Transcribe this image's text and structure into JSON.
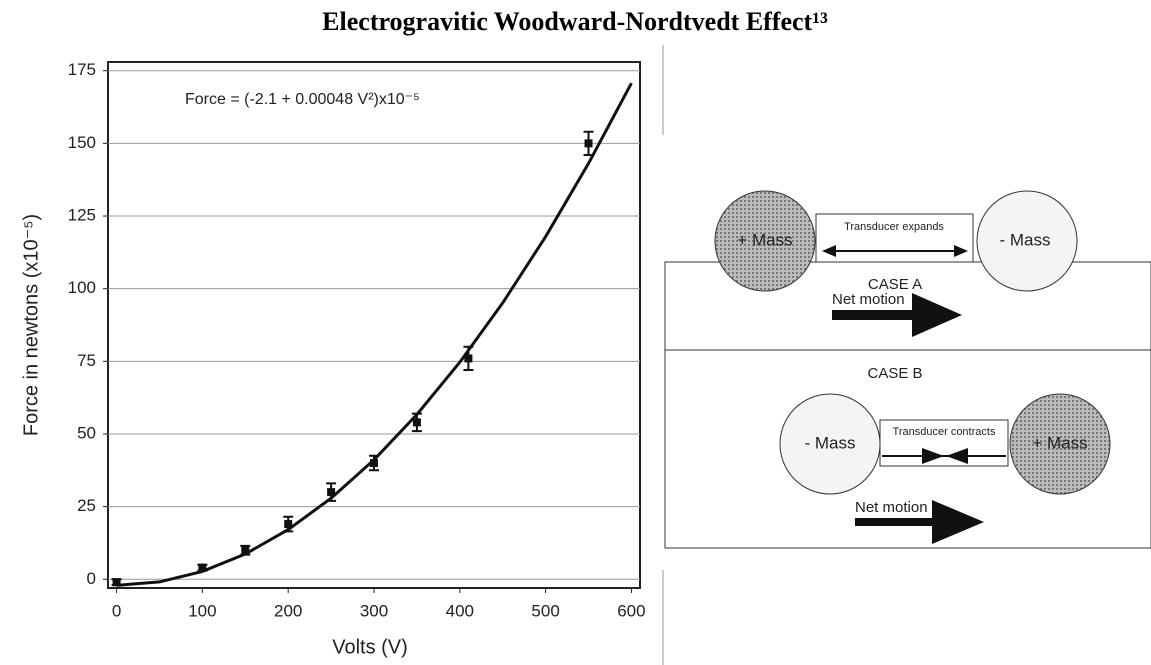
{
  "chart_data": {
    "type": "scatter",
    "title": "Electrogravitic Woodward-Nordtvedt Effect¹³",
    "xlabel": "Volts (V)",
    "ylabel": "Force in newtons (x10⁻⁵)",
    "annotation": "Force = (-2.1 + 0.00048 V²)x10⁻⁵",
    "xlim": [
      -10,
      610
    ],
    "xticks": [
      0,
      100,
      200,
      300,
      400,
      500,
      600
    ],
    "ylim": [
      -3,
      178
    ],
    "yticks": [
      0,
      25,
      50,
      75,
      100,
      125,
      150,
      175
    ],
    "grid": true,
    "series": [
      {
        "type": "line",
        "color": "#111",
        "x": [
          0,
          50,
          100,
          150,
          200,
          250,
          300,
          350,
          400,
          450,
          500,
          550,
          600
        ],
        "values": [
          -2.1,
          -0.9,
          2.7,
          8.7,
          17.1,
          27.9,
          41.1,
          56.7,
          74.7,
          95.1,
          117.9,
          143.1,
          170.7
        ]
      },
      {
        "type": "scatter",
        "color": "#111",
        "x": [
          0,
          100,
          150,
          200,
          250,
          300,
          350,
          410,
          550
        ],
        "values": [
          -1,
          4,
          10,
          19,
          30,
          40,
          54,
          76,
          150
        ],
        "errors": [
          1,
          1,
          1.5,
          2.5,
          3,
          2.5,
          3,
          4,
          4
        ]
      }
    ]
  },
  "diagram": {
    "case_a": {
      "label": "CASE A",
      "left_mass": "+ Mass",
      "transducer": "Transducer expands",
      "right_mass": "- Mass",
      "motion": "Net motion"
    },
    "case_b": {
      "label": "CASE B",
      "left_mass": "- Mass",
      "transducer": "Transducer contracts",
      "right_mass": "+ Mass",
      "motion": "Net motion"
    }
  }
}
